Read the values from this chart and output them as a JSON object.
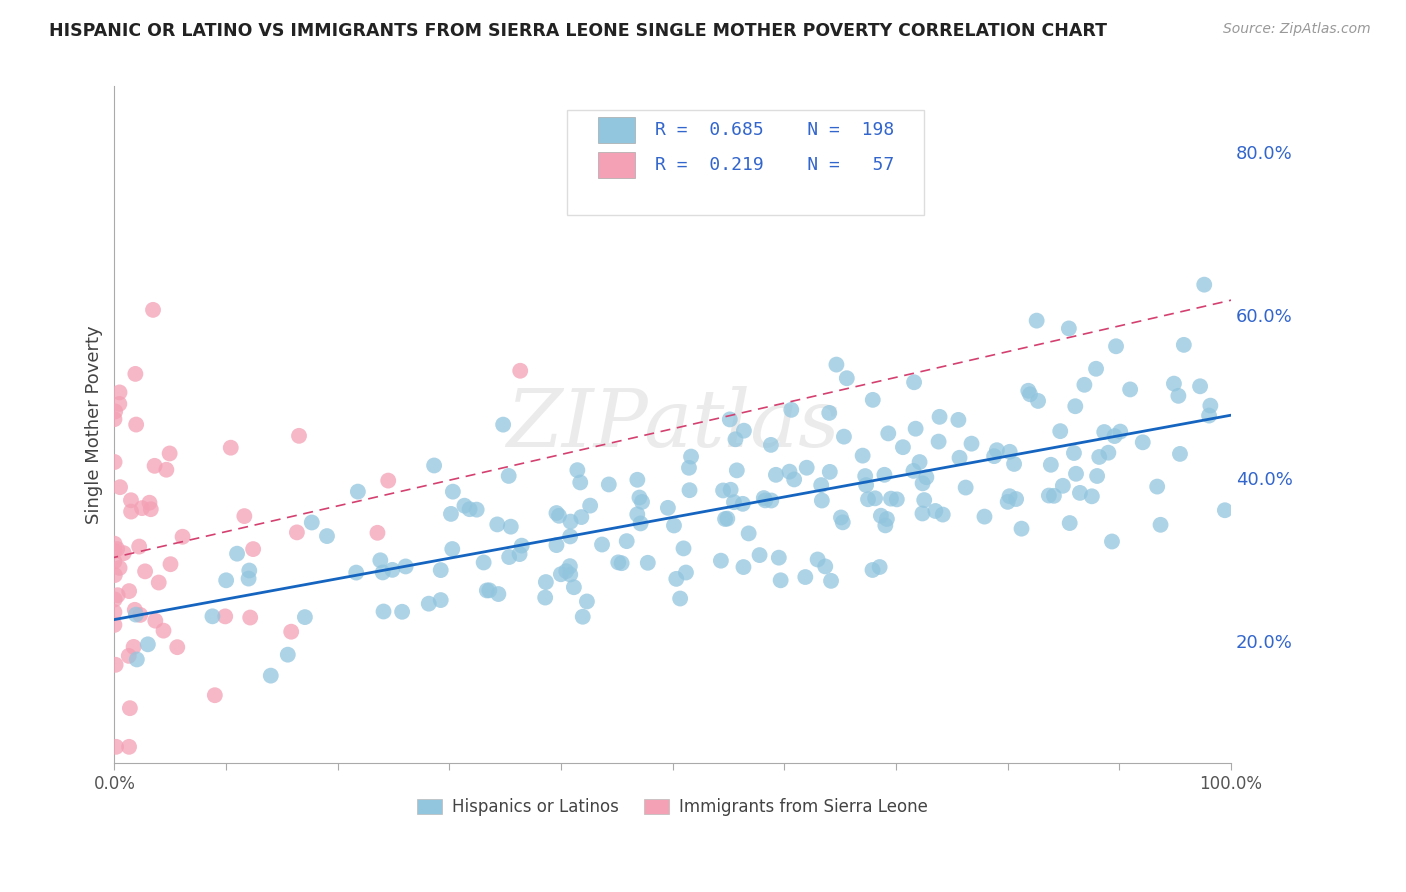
{
  "title": "HISPANIC OR LATINO VS IMMIGRANTS FROM SIERRA LEONE SINGLE MOTHER POVERTY CORRELATION CHART",
  "source": "Source: ZipAtlas.com",
  "ylabel": "Single Mother Poverty",
  "xlim": [
    0,
    1
  ],
  "ylim": [
    0.05,
    0.88
  ],
  "yticks_right": [
    0.2,
    0.4,
    0.6,
    0.8
  ],
  "ytick_labels_right": [
    "20.0%",
    "40.0%",
    "60.0%",
    "80.0%"
  ],
  "xtick_positions": [
    0.0,
    0.1,
    0.2,
    0.3,
    0.4,
    0.5,
    0.6,
    0.7,
    0.8,
    0.9,
    1.0
  ],
  "xtick_labels": [
    "0.0%",
    "",
    "",
    "",
    "",
    "",
    "",
    "",
    "",
    "",
    "100.0%"
  ],
  "R_blue": 0.685,
  "N_blue": 198,
  "R_pink": 0.219,
  "N_pink": 57,
  "blue_color": "#92C5DE",
  "pink_color": "#F4A0B5",
  "blue_line_color": "#1565C0",
  "pink_line_color": "#D44070",
  "legend_label_blue": "Hispanics or Latinos",
  "legend_label_pink": "Immigrants from Sierra Leone",
  "watermark": "ZIPAtlas",
  "background_color": "#ffffff",
  "grid_color": "#cccccc",
  "title_color": "#222222",
  "right_tick_color": "#3366CC",
  "seed_blue": 42,
  "seed_pink": 7
}
